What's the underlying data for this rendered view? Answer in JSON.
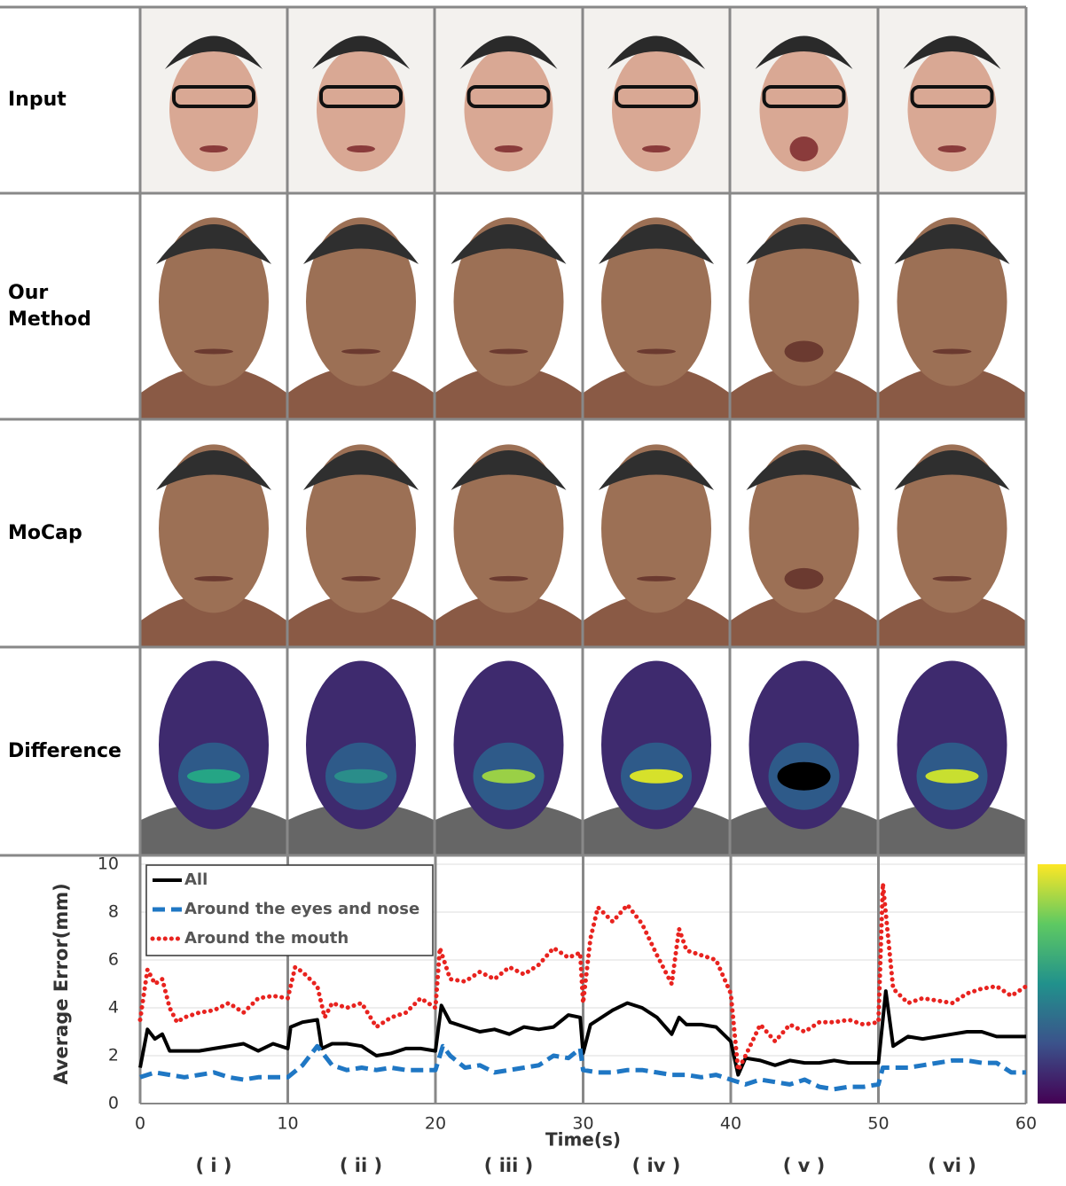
{
  "row_labels": [
    "Input",
    "Our Method",
    "MoCap",
    "Difference"
  ],
  "column_labels": [
    "( i )",
    "( ii )",
    "( iii )",
    "( iv )",
    "( v )",
    "( vi )"
  ],
  "chart_data": {
    "type": "line",
    "x_label": "Time(s)",
    "y_label": "Average Error(mm)",
    "xlim": [
      0,
      60
    ],
    "xticks": [
      0,
      10,
      20,
      30,
      40,
      50,
      60
    ],
    "ylim": [
      0,
      10
    ],
    "yticks": [
      0,
      2,
      4,
      6,
      8,
      10
    ],
    "grid": true,
    "legend": "top-left",
    "series": [
      {
        "name": "All",
        "color": "#000000",
        "style": "solid",
        "x": [
          0,
          0.5,
          1,
          1.5,
          2,
          3,
          4,
          5,
          6,
          7,
          8,
          9,
          10,
          10.2,
          11,
          12,
          12.3,
          13,
          14,
          15,
          16,
          17,
          18,
          19,
          20,
          20.4,
          21,
          22,
          23,
          24,
          25,
          26,
          27,
          28,
          29,
          29.8,
          30,
          30.5,
          31,
          32,
          33,
          34,
          35,
          36,
          36.5,
          37,
          38,
          39,
          40,
          40.5,
          41,
          42,
          43,
          44,
          45,
          46,
          47,
          48,
          49,
          50,
          50.5,
          51,
          52,
          53,
          54,
          55,
          56,
          57,
          58,
          59,
          60
        ],
        "values": [
          1.5,
          3.1,
          2.7,
          2.9,
          2.2,
          2.2,
          2.2,
          2.3,
          2.4,
          2.5,
          2.2,
          2.5,
          2.3,
          3.2,
          3.4,
          3.5,
          2.3,
          2.5,
          2.5,
          2.4,
          2.0,
          2.1,
          2.3,
          2.3,
          2.2,
          4.1,
          3.4,
          3.2,
          3.0,
          3.1,
          2.9,
          3.2,
          3.1,
          3.2,
          3.7,
          3.6,
          2.1,
          3.3,
          3.5,
          3.9,
          4.2,
          4.0,
          3.6,
          2.9,
          3.6,
          3.3,
          3.3,
          3.2,
          2.6,
          1.2,
          1.9,
          1.8,
          1.6,
          1.8,
          1.7,
          1.7,
          1.8,
          1.7,
          1.7,
          1.7,
          4.7,
          2.4,
          2.8,
          2.7,
          2.8,
          2.9,
          3.0,
          3.0,
          2.8,
          2.8,
          2.8
        ]
      },
      {
        "name": "Around the eyes and nose",
        "color": "#1f77c4",
        "style": "dashed",
        "x": [
          0,
          1,
          2,
          3,
          4,
          5,
          6,
          7,
          8,
          9,
          10,
          11,
          12,
          13,
          14,
          15,
          16,
          17,
          18,
          19,
          20,
          20.5,
          21,
          22,
          23,
          24,
          25,
          26,
          27,
          28,
          29,
          29.8,
          30,
          31,
          32,
          33,
          34,
          35,
          36,
          37,
          38,
          39,
          40,
          41,
          42,
          43,
          44,
          45,
          46,
          47,
          48,
          49,
          50,
          50.3,
          51,
          52,
          53,
          54,
          55,
          56,
          57,
          58,
          59,
          60
        ],
        "values": [
          1.1,
          1.3,
          1.2,
          1.1,
          1.2,
          1.3,
          1.1,
          1.0,
          1.1,
          1.1,
          1.1,
          1.6,
          2.4,
          1.6,
          1.4,
          1.5,
          1.4,
          1.5,
          1.4,
          1.4,
          1.4,
          2.4,
          2.0,
          1.5,
          1.6,
          1.3,
          1.4,
          1.5,
          1.6,
          2.0,
          1.9,
          2.3,
          1.4,
          1.3,
          1.3,
          1.4,
          1.4,
          1.3,
          1.2,
          1.2,
          1.1,
          1.2,
          1.0,
          0.8,
          1.0,
          0.9,
          0.8,
          1.0,
          0.7,
          0.6,
          0.7,
          0.7,
          0.8,
          1.5,
          1.5,
          1.5,
          1.6,
          1.7,
          1.8,
          1.8,
          1.7,
          1.7,
          1.3,
          1.3
        ]
      },
      {
        "name": "Around the mouth",
        "color": "#e8231f",
        "style": "dotted",
        "x": [
          0,
          0.5,
          1,
          1.5,
          2,
          2.5,
          3,
          4,
          5,
          6,
          7,
          8,
          9,
          10,
          10.5,
          11,
          12,
          12.5,
          13,
          14,
          15,
          16,
          17,
          18,
          19,
          20,
          20.3,
          21,
          22,
          23,
          24,
          25,
          26,
          27,
          28,
          29,
          29.8,
          30,
          30.5,
          31,
          32,
          33,
          34,
          35,
          36,
          36.5,
          37,
          38,
          39,
          40,
          40.5,
          41,
          42,
          43,
          44,
          45,
          46,
          47,
          48,
          49,
          50,
          50.3,
          51,
          52,
          53,
          54,
          55,
          56,
          57,
          58,
          59,
          60
        ],
        "values": [
          3.5,
          5.6,
          5.0,
          5.2,
          4.0,
          3.4,
          3.6,
          3.8,
          3.9,
          4.2,
          3.8,
          4.4,
          4.5,
          4.4,
          5.7,
          5.5,
          4.9,
          3.6,
          4.2,
          4.0,
          4.2,
          3.2,
          3.6,
          3.8,
          4.4,
          4.0,
          6.5,
          5.2,
          5.1,
          5.5,
          5.2,
          5.7,
          5.4,
          5.8,
          6.5,
          6.1,
          6.3,
          4.2,
          6.9,
          8.2,
          7.6,
          8.3,
          7.5,
          6.2,
          5.0,
          7.3,
          6.4,
          6.2,
          6.0,
          4.6,
          1.4,
          2.0,
          3.3,
          2.6,
          3.3,
          3.0,
          3.4,
          3.4,
          3.5,
          3.3,
          3.4,
          9.2,
          4.8,
          4.2,
          4.4,
          4.3,
          4.2,
          4.6,
          4.8,
          4.9,
          4.5,
          4.9
        ]
      }
    ]
  }
}
